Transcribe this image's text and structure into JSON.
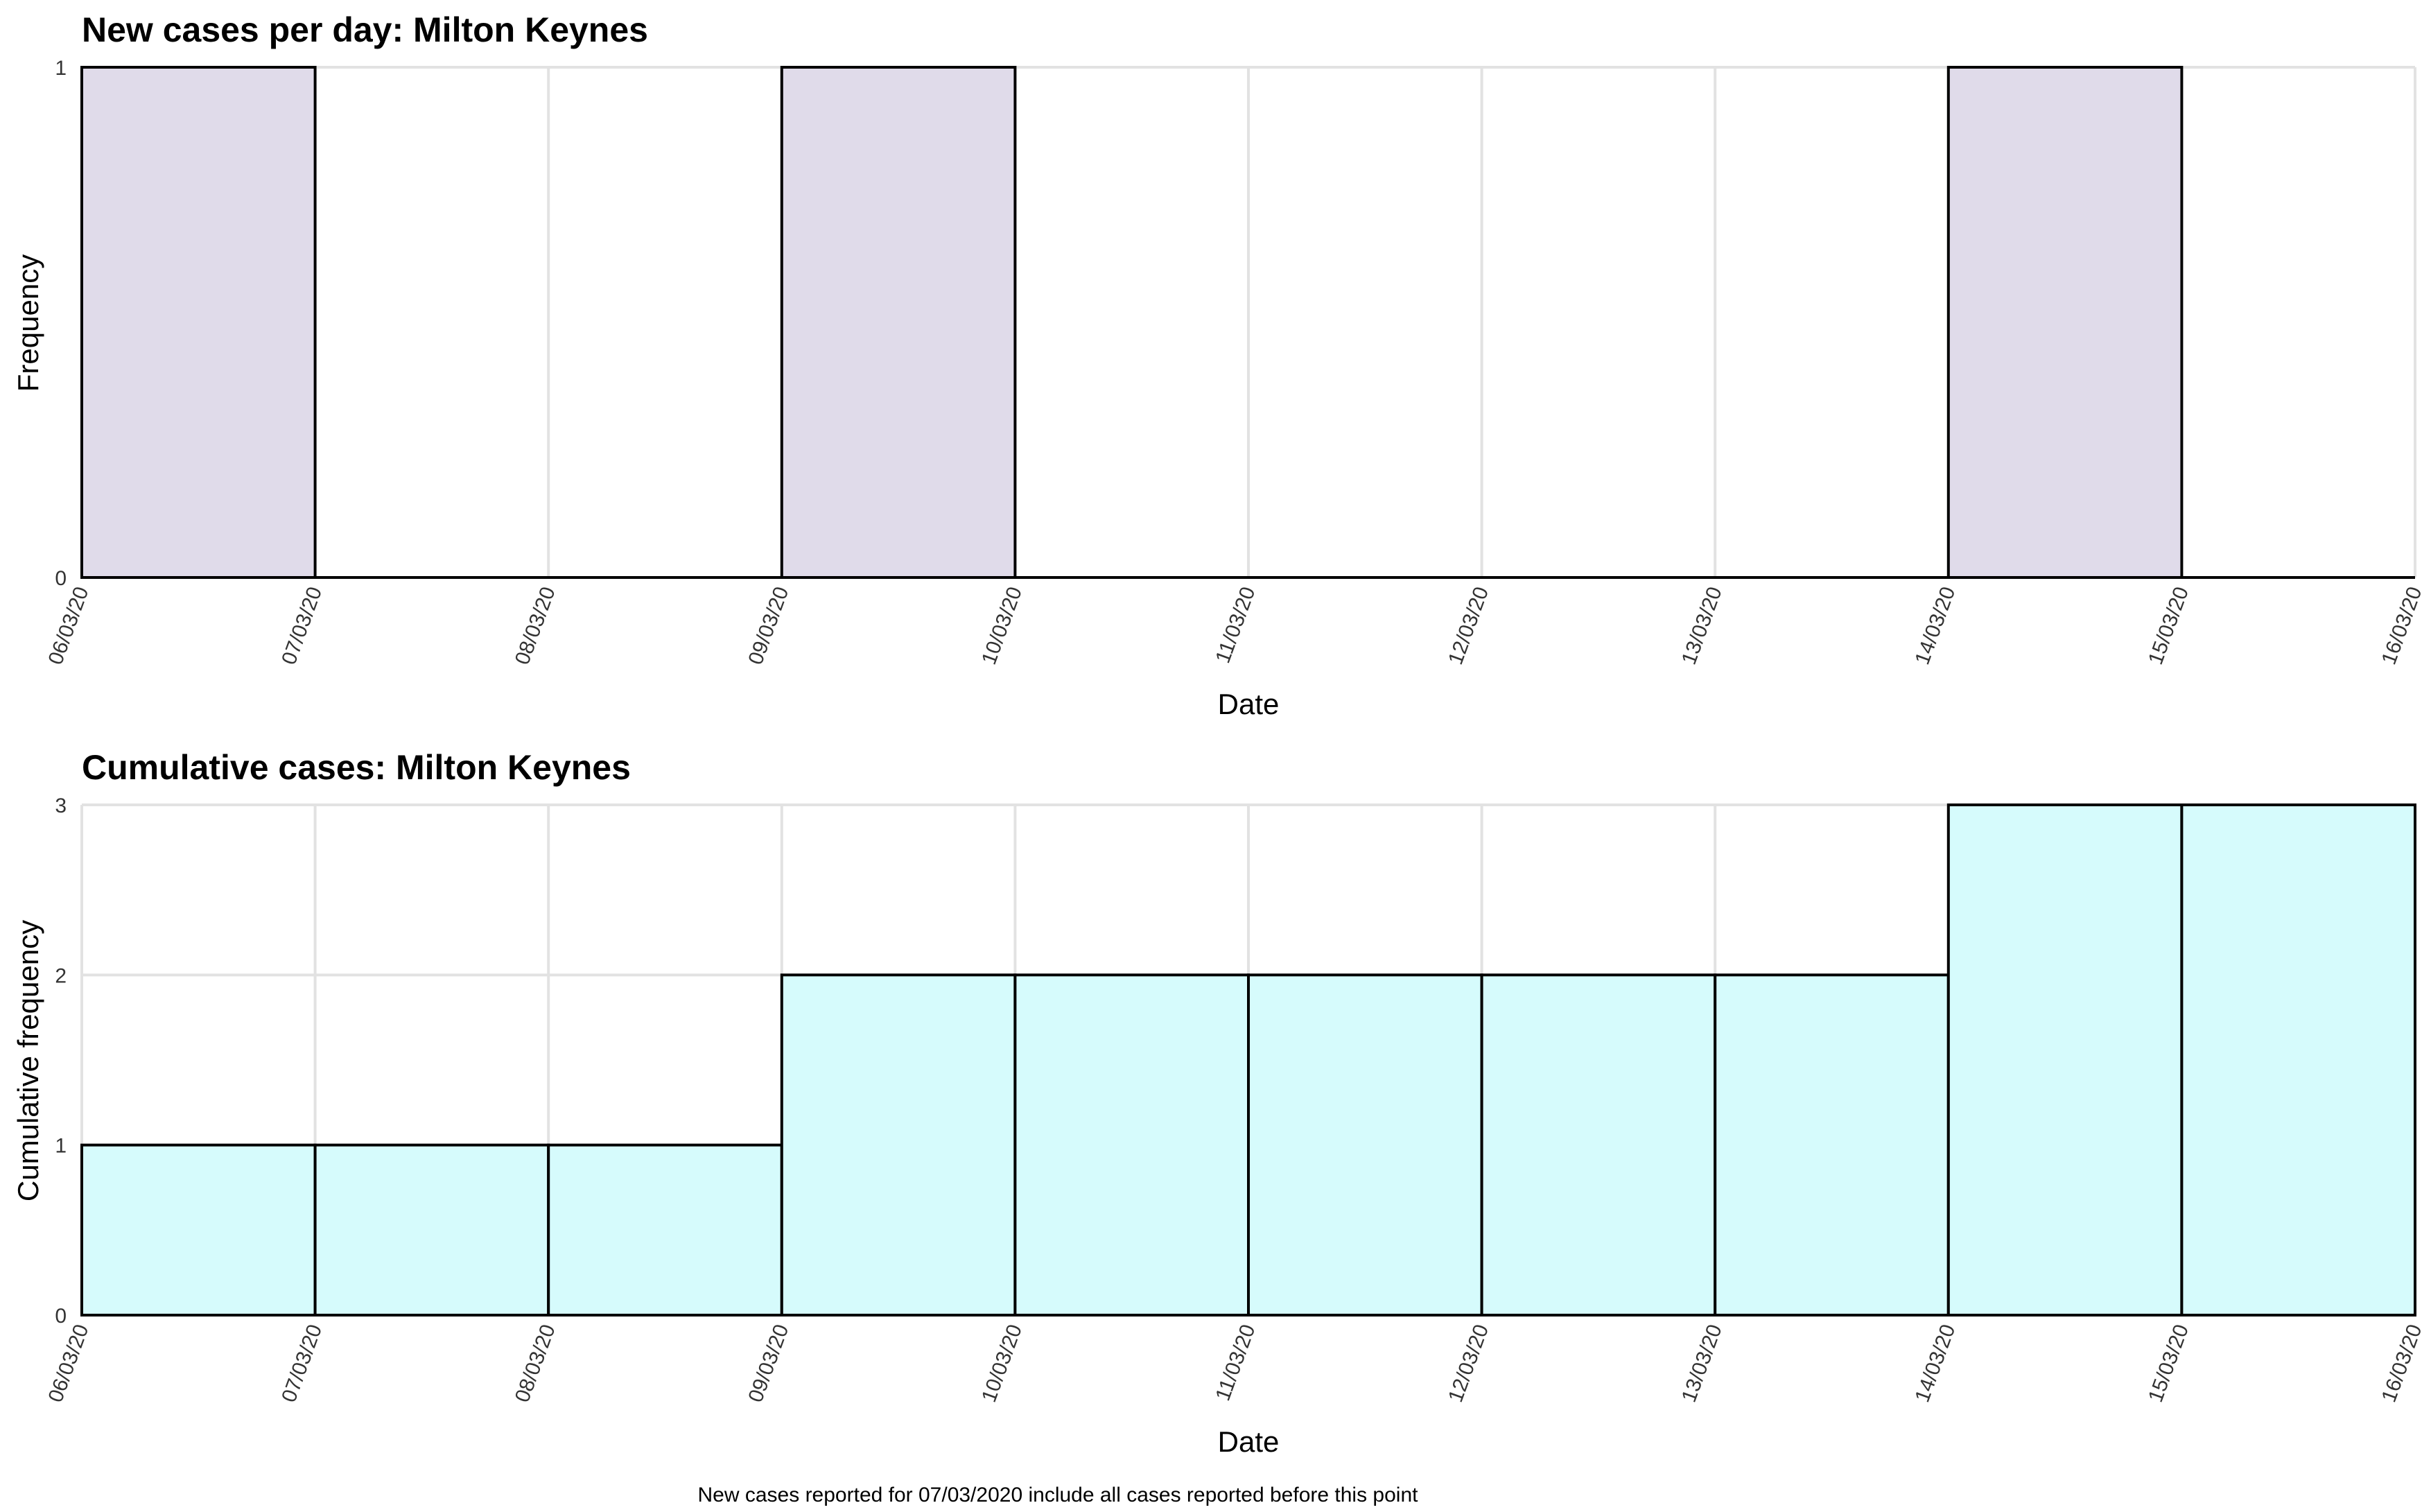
{
  "chart_data": [
    {
      "type": "bar",
      "title": "New cases per day: Milton Keynes",
      "xlabel": "Date",
      "ylabel": "Frequency",
      "x_ticks": [
        "06/03/20",
        "07/03/20",
        "08/03/20",
        "09/03/20",
        "10/03/20",
        "11/03/20",
        "12/03/20",
        "13/03/20",
        "14/03/20",
        "15/03/20",
        "16/03/20"
      ],
      "categories": [
        "06/03/20",
        "07/03/20",
        "08/03/20",
        "09/03/20",
        "10/03/20",
        "11/03/20",
        "12/03/20",
        "13/03/20",
        "14/03/20",
        "15/03/20"
      ],
      "values": [
        1,
        0,
        0,
        1,
        0,
        0,
        0,
        0,
        1,
        0
      ],
      "ylim": [
        0,
        1
      ],
      "y_ticks": [
        "0",
        "1"
      ],
      "grid": true,
      "bar_color": "#e0dbea"
    },
    {
      "type": "bar",
      "title": "Cumulative cases: Milton Keynes",
      "xlabel": "Date",
      "ylabel": "Cumulative frequency",
      "x_ticks": [
        "06/03/20",
        "07/03/20",
        "08/03/20",
        "09/03/20",
        "10/03/20",
        "11/03/20",
        "12/03/20",
        "13/03/20",
        "14/03/20",
        "15/03/20",
        "16/03/20"
      ],
      "categories": [
        "06/03/20",
        "07/03/20",
        "08/03/20",
        "09/03/20",
        "10/03/20",
        "11/03/20",
        "12/03/20",
        "13/03/20",
        "14/03/20",
        "15/03/20"
      ],
      "values": [
        1,
        1,
        1,
        2,
        2,
        2,
        2,
        2,
        3,
        3
      ],
      "ylim": [
        0,
        3
      ],
      "y_ticks": [
        "0",
        "1",
        "2",
        "3"
      ],
      "grid": true,
      "bar_color": "#d6fbfc"
    }
  ],
  "footnote": "New cases reported for 07/03/2020 include all cases reported before this point"
}
